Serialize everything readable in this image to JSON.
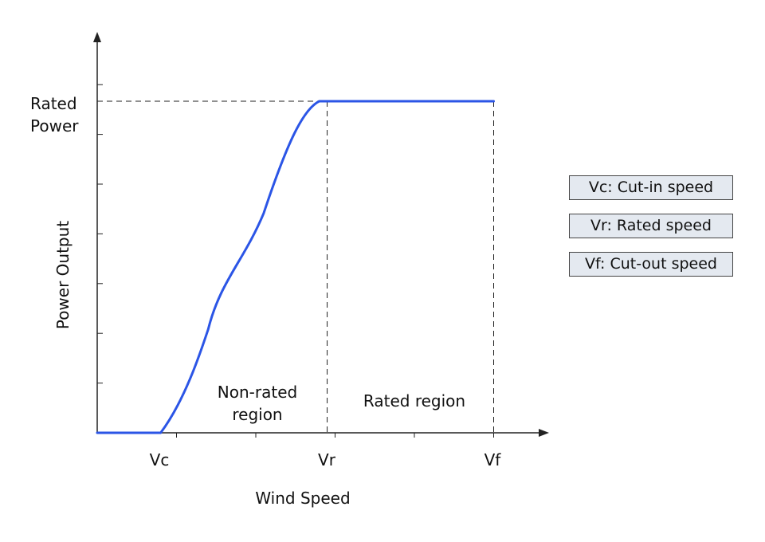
{
  "chart_data": {
    "type": "line",
    "title": "",
    "xlabel": "Wind Speed",
    "ylabel": "Power Output",
    "x_ticks": [
      "Vc",
      "Vr",
      "Vf"
    ],
    "y_tick_label": [
      "Rated",
      "Power"
    ],
    "xlim": [
      0,
      5
    ],
    "ylim": [
      0,
      1.0
    ],
    "grid": false,
    "series": [
      {
        "name": "",
        "color": "#2b55e6",
        "x": [
          0,
          0.8,
          1.4,
          2.1,
          2.8,
          5.0
        ],
        "y": [
          0,
          0,
          0.25,
          0.53,
          0.8,
          0.8
        ]
      }
    ],
    "reference_lines": {
      "horizontal_at": 0.8,
      "vertical_at": [
        2.9,
        5.0
      ]
    },
    "annotations": {
      "non_rated": [
        "Non-rated",
        "region"
      ],
      "rated": "Rated region"
    },
    "legend": {
      "placement": "right",
      "entries": [
        "Vc: Cut-in speed",
        "Vr: Rated speed",
        "Vf: Cut-out speed"
      ],
      "box_color": "#e4e9f0"
    }
  }
}
